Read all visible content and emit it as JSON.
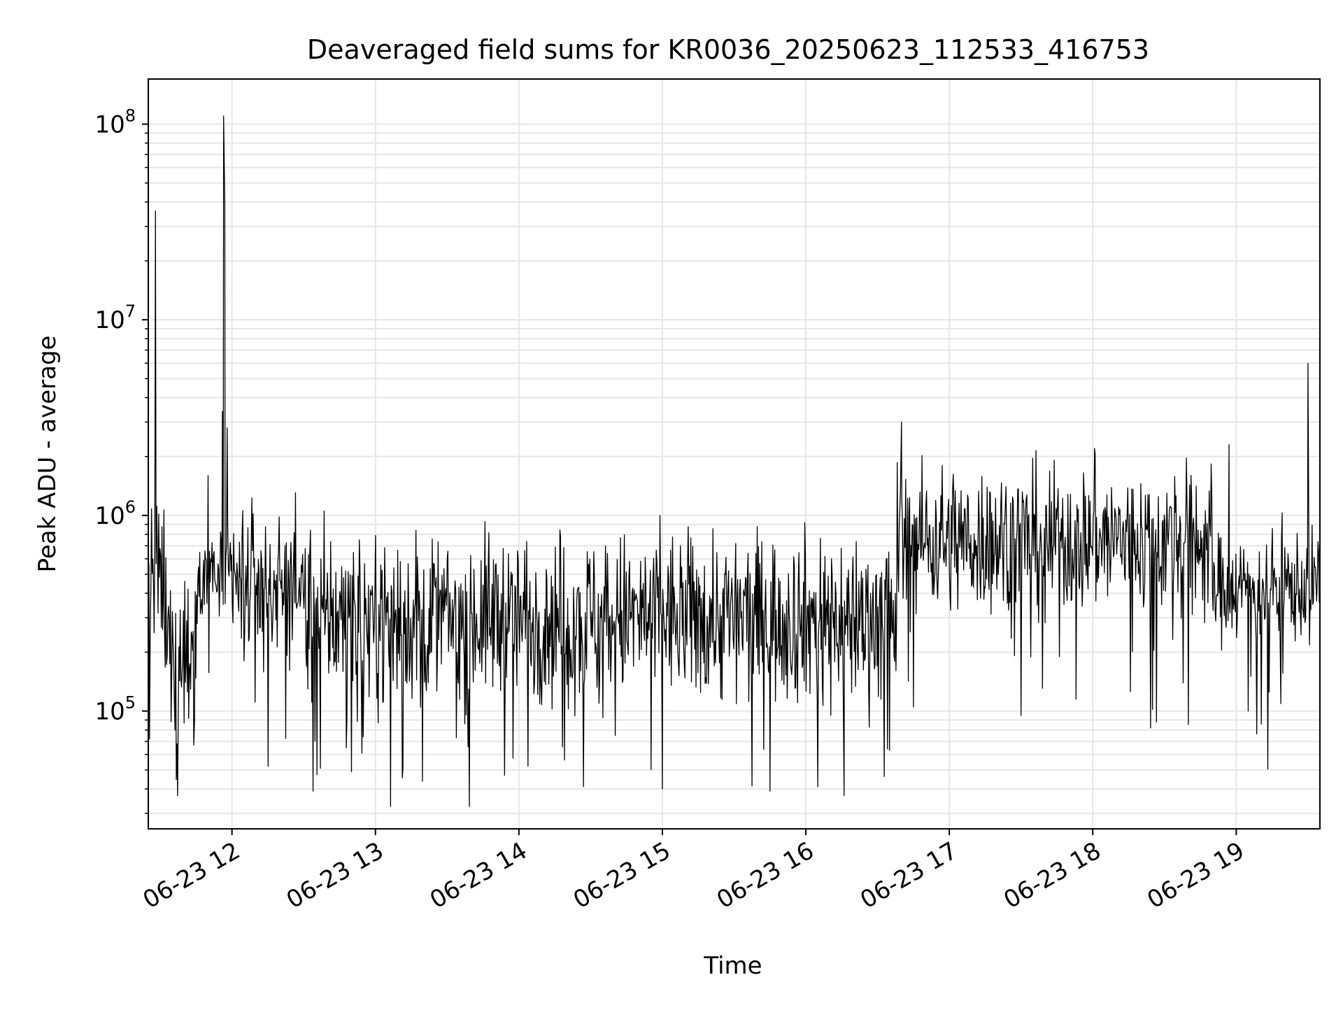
{
  "chart_data": {
    "type": "line",
    "title": "Deaveraged field sums for KR0036_20250623_112533_416753",
    "xlabel": "Time",
    "ylabel": "Peak ADU - average",
    "yscale": "log",
    "grid": true,
    "grid_color": "#e6e6e6",
    "line_color": "#000000",
    "xlim": [
      "2025-06-23 11:25",
      "2025-06-23 19:35"
    ],
    "ylim": [
      25000,
      170000000
    ],
    "x_ticks": [
      {
        "value": "2025-06-23 12:00",
        "label": "06-23 12"
      },
      {
        "value": "2025-06-23 13:00",
        "label": "06-23 13"
      },
      {
        "value": "2025-06-23 14:00",
        "label": "06-23 14"
      },
      {
        "value": "2025-06-23 15:00",
        "label": "06-23 15"
      },
      {
        "value": "2025-06-23 16:00",
        "label": "06-23 16"
      },
      {
        "value": "2025-06-23 17:00",
        "label": "06-23 17"
      },
      {
        "value": "2025-06-23 18:00",
        "label": "06-23 18"
      },
      {
        "value": "2025-06-23 19:00",
        "label": "06-23 19"
      }
    ],
    "y_ticks": [
      {
        "value": 100000,
        "base": "10",
        "exp": "5"
      },
      {
        "value": 1000000,
        "base": "10",
        "exp": "6"
      },
      {
        "value": 10000000,
        "base": "10",
        "exp": "7"
      },
      {
        "value": 100000000,
        "base": "10",
        "exp": "8"
      }
    ],
    "baseline_segments": [
      {
        "start": "2025-06-23 11:25",
        "end": "2025-06-23 11:32",
        "level": 450000,
        "noise": 0.32
      },
      {
        "start": "2025-06-23 11:32",
        "end": "2025-06-23 11:45",
        "level": 200000,
        "noise": 0.35
      },
      {
        "start": "2025-06-23 11:45",
        "end": "2025-06-23 11:55",
        "level": 500000,
        "noise": 0.18
      },
      {
        "start": "2025-06-23 11:55",
        "end": "2025-06-23 12:30",
        "level": 440000,
        "noise": 0.28
      },
      {
        "start": "2025-06-23 12:30",
        "end": "2025-06-23 16:38",
        "level": 300000,
        "noise": 0.34
      },
      {
        "start": "2025-06-23 16:38",
        "end": "2025-06-23 18:50",
        "level": 750000,
        "noise": 0.3
      },
      {
        "start": "2025-06-23 18:50",
        "end": "2025-06-23 19:35",
        "level": 430000,
        "noise": 0.22
      }
    ],
    "peaks": [
      {
        "x": "2025-06-23 11:28",
        "y": 36000000
      },
      {
        "x": "2025-06-23 11:50",
        "y": 1600000
      },
      {
        "x": "2025-06-23 11:56",
        "y": 3400000
      },
      {
        "x": "2025-06-23 11:56.5",
        "y": 110000000
      },
      {
        "x": "2025-06-23 11:57",
        "y": 39000000
      },
      {
        "x": "2025-06-23 11:58",
        "y": 2800000
      },
      {
        "x": "2025-06-23 14:59",
        "y": 1000000
      },
      {
        "x": "2025-06-23 16:40",
        "y": 3000000
      },
      {
        "x": "2025-06-23 18:01",
        "y": 2050000
      },
      {
        "x": "2025-06-23 18:57",
        "y": 2300000
      },
      {
        "x": "2025-06-23 19:30",
        "y": 6000000
      }
    ],
    "dips": [
      {
        "x": "2025-06-23 11:25.5",
        "y": 72000
      },
      {
        "x": "2025-06-23 11:37",
        "y": 68000
      },
      {
        "x": "2025-06-23 11:44",
        "y": 67000
      },
      {
        "x": "2025-06-23 12:37",
        "y": 51000
      },
      {
        "x": "2025-06-23 13:54",
        "y": 47000
      },
      {
        "x": "2025-06-23 14:27",
        "y": 41000
      },
      {
        "x": "2025-06-23 15:00",
        "y": 40000
      },
      {
        "x": "2025-06-23 15:45",
        "y": 39000
      },
      {
        "x": "2025-06-23 16:05",
        "y": 41000
      },
      {
        "x": "2025-06-23 16:16",
        "y": 37000
      },
      {
        "x": "2025-06-23 16:35",
        "y": 63000
      },
      {
        "x": "2025-06-23 16:45",
        "y": 105000
      },
      {
        "x": "2025-06-23 17:30",
        "y": 95000
      },
      {
        "x": "2025-06-23 17:53",
        "y": 115000
      },
      {
        "x": "2025-06-23 18:25",
        "y": 102000
      },
      {
        "x": "2025-06-23 19:05",
        "y": 100000
      }
    ]
  }
}
